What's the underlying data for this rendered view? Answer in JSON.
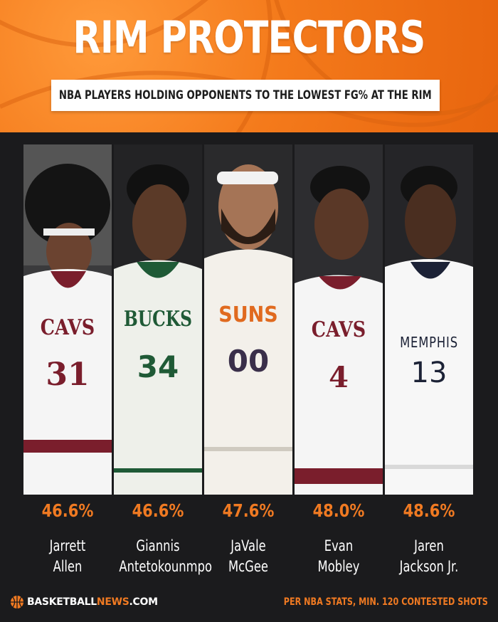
{
  "header": {
    "title": "RIM PROTECTORS",
    "subtitle": "NBA PLAYERS HOLDING OPPONENTS TO THE LOWEST FG% AT THE RIM",
    "background_color": "#f47a1b"
  },
  "players": [
    {
      "pct": "46.6%",
      "first": "Jarrett",
      "last": "Allen",
      "team_text": "CAVS",
      "number": "31",
      "jersey_color": "#f5f5f5",
      "accent_color": "#7a1e2c"
    },
    {
      "pct": "46.6%",
      "first": "Giannis",
      "last": "Antetokounmpo",
      "team_text": "BUCKS",
      "number": "34",
      "jersey_color": "#eef0ea",
      "accent_color": "#1f5a36"
    },
    {
      "pct": "47.6%",
      "first": "JaVale",
      "last": "McGee",
      "team_text": "SUNS",
      "number": "00",
      "jersey_color": "#f3f0ea",
      "accent_color": "#e06a1f"
    },
    {
      "pct": "48.0%",
      "first": "Evan",
      "last": "Mobley",
      "team_text": "CAVS",
      "number": "4",
      "jersey_color": "#f5f5f5",
      "accent_color": "#7a1e2c"
    },
    {
      "pct": "48.6%",
      "first": "Jaren",
      "last": "Jackson Jr.",
      "team_text": "MEMPHIS",
      "number": "13",
      "jersey_color": "#f7f7f7",
      "accent_color": "#1c2236"
    }
  ],
  "footer": {
    "logo_main": "BASKETBALL",
    "logo_accent": "NEWS",
    "logo_suffix": ".COM",
    "note": "PER NBA STATS, MIN. 120 CONTESTED SHOTS",
    "accent_color": "#f07a22"
  }
}
